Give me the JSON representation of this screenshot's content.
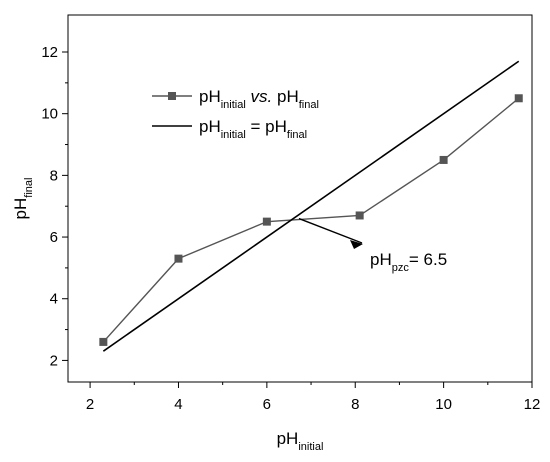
{
  "chart_data": {
    "type": "line",
    "xlabel": {
      "base": "pH",
      "sub": "initial"
    },
    "ylabel": {
      "base": "pH",
      "sub": "final"
    },
    "xlim": [
      1.5,
      12
    ],
    "ylim": [
      1.3,
      13.2
    ],
    "xticks": [
      2,
      4,
      6,
      8,
      10,
      12
    ],
    "yticks": [
      2,
      4,
      6,
      8,
      10,
      12
    ],
    "series": [
      {
        "marker": "square",
        "color": "#555555",
        "x": [
          2.3,
          4,
          6,
          8.1,
          10,
          11.7
        ],
        "y": [
          2.6,
          5.3,
          6.5,
          6.7,
          8.5,
          10.5
        ]
      },
      {
        "marker": "none",
        "color": "#000000",
        "x": [
          2.3,
          11.7
        ],
        "y": [
          2.3,
          11.7
        ]
      }
    ],
    "legend": {
      "placement": "top-left",
      "entries": [
        {
          "parts": [
            {
              "t": "pH"
            },
            {
              "t": "initial",
              "sub": true
            },
            {
              "t": " "
            },
            {
              "t": "vs.",
              "italic": true
            },
            {
              "t": " pH"
            },
            {
              "t": "final",
              "sub": true
            }
          ]
        },
        {
          "parts": [
            {
              "t": "pH"
            },
            {
              "t": "initial",
              "sub": true
            },
            {
              "t": " = pH"
            },
            {
              "t": "final",
              "sub": true
            }
          ]
        }
      ]
    },
    "annotation": {
      "parts": [
        {
          "t": "pH"
        },
        {
          "t": "pzc",
          "sub": true
        },
        {
          "t": "= 6.5"
        }
      ],
      "point": [
        6.5,
        6.6
      ]
    }
  }
}
